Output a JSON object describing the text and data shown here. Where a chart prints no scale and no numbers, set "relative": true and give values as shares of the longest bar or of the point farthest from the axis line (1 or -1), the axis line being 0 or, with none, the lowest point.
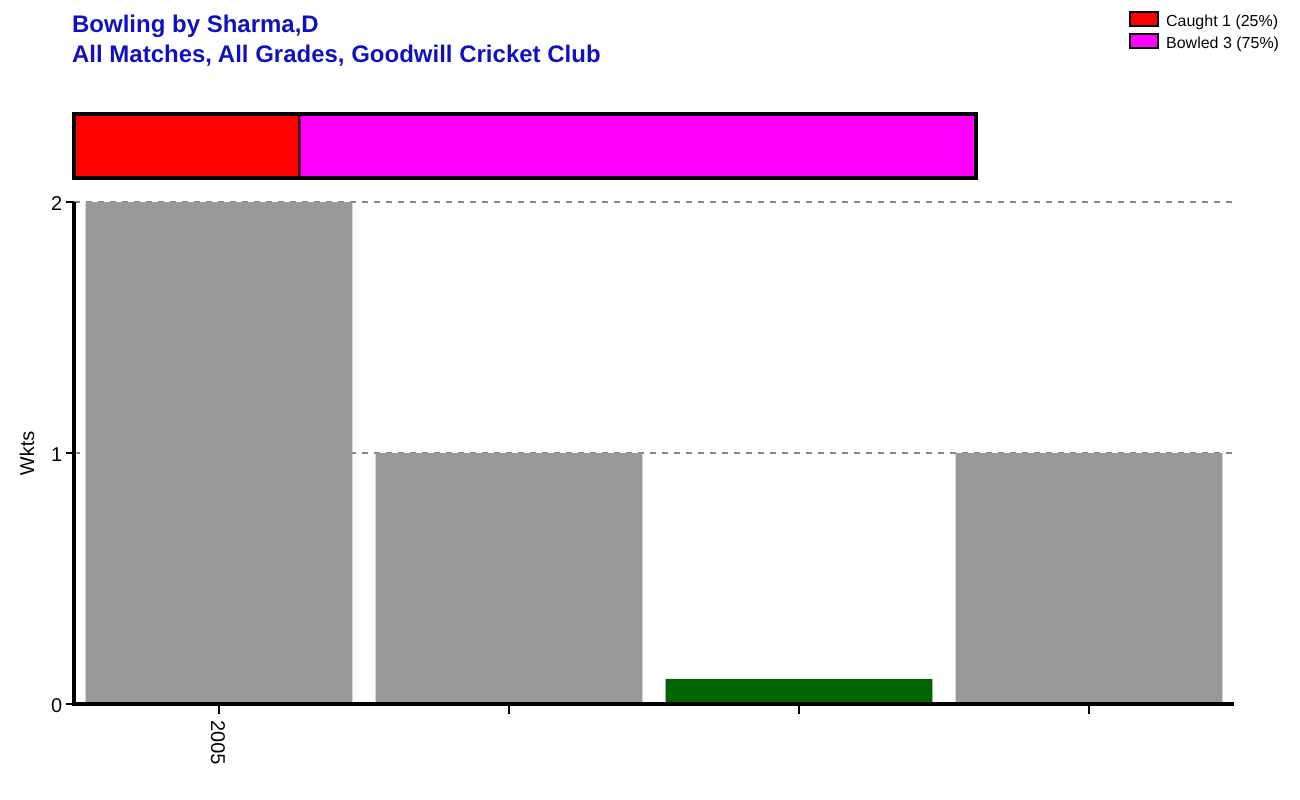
{
  "chart_data": [
    {
      "type": "bar",
      "title": "Bowling by Sharma,D",
      "subtitle": "All Matches, All Grades, Goodwill Cricket Club",
      "orientation": "horizontal",
      "stacked": true,
      "categories": [
        null
      ],
      "relative": true,
      "legend": "top right",
      "series": [
        {
          "name": "Caught 1 (25%)",
          "color": "#ff0000",
          "values": [
            0.25
          ]
        },
        {
          "name": "Bowled 3 (75%)",
          "color": "#ff00ff",
          "values": [
            0.75
          ]
        }
      ]
    },
    {
      "type": "bar",
      "ylabel": "Wkts",
      "categories": [
        "2005",
        null,
        null,
        null
      ],
      "values": [
        2,
        1,
        0.1,
        1
      ],
      "colors": [
        "#999999",
        "#999999",
        "#006400",
        "#999999"
      ],
      "ylim": [
        0,
        2
      ],
      "yticks": [
        0,
        1,
        2
      ],
      "grid": "y"
    }
  ]
}
